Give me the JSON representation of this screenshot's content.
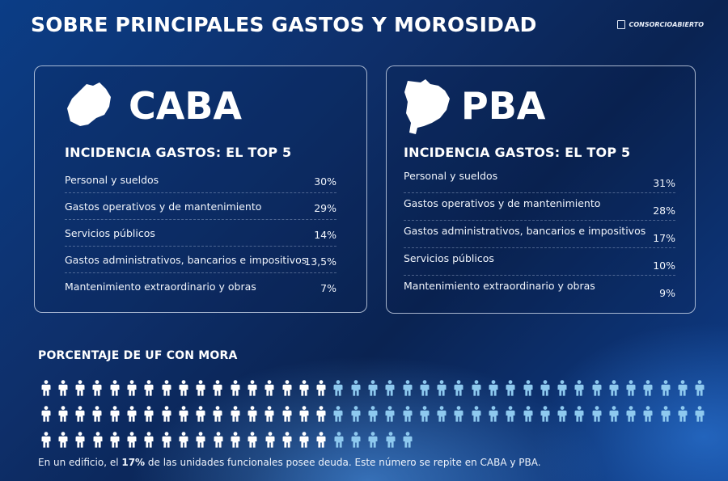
{
  "title": "SOBRE PRINCIPALES GASTOS Y MOROSIDAD",
  "brand": "CONSORCIOABIERTO",
  "caba": {
    "name": "CABA",
    "subtitle": "INCIDENCIA GASTOS: EL TOP 5",
    "rows": [
      {
        "label": "Personal y sueldos",
        "value": "30%"
      },
      {
        "label": "Gastos operativos y de mantenimiento",
        "value": "29%"
      },
      {
        "label": "Servicios públicos",
        "value": "14%"
      },
      {
        "label": "Gastos administrativos, bancarios e impositivos",
        "value": "13,5%"
      },
      {
        "label": "Mantenimiento extraordinario y obras",
        "value": "7%"
      }
    ]
  },
  "pba": {
    "name": "PBA",
    "subtitle": "INCIDENCIA GASTOS: EL TOP 5",
    "rows": [
      {
        "label": "Personal y sueldos",
        "value": "31%"
      },
      {
        "label": "Gastos operativos y de mantenimiento",
        "value": "28%"
      },
      {
        "label": "Gastos administrativos, bancarios e impositivos",
        "value": "17%"
      },
      {
        "label": "Servicios públicos",
        "value": "10%"
      },
      {
        "label": "Mantenimiento extraordinario y obras",
        "value": "9%"
      }
    ]
  },
  "mora": {
    "title": "PORCENTAJE DE UF CON MORA",
    "icon_rows": [
      39,
      39,
      22
    ],
    "highlight_count": 17,
    "highlight_color": "#ffffff",
    "base_color": "#8ec9ef",
    "icon": "person-icon",
    "footnote_pre": "En un edificio, el ",
    "footnote_bold": "17%",
    "footnote_post": " de las unidades funcionales posee deuda. Este número se repite en CABA y PBA."
  }
}
